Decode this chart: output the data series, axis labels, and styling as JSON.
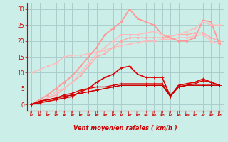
{
  "background_color": "#cceee8",
  "grid_color": "#aacccc",
  "x_ticks": [
    0,
    1,
    2,
    3,
    4,
    5,
    6,
    7,
    8,
    9,
    10,
    11,
    12,
    13,
    14,
    15,
    16,
    17,
    18,
    19,
    20,
    21,
    22,
    23
  ],
  "xlabel": "Vent moyen/en rafales ( km/h )",
  "ylim": [
    -2,
    32
  ],
  "yticks": [
    0,
    5,
    10,
    15,
    20,
    25,
    30
  ],
  "series": [
    {
      "x": [
        0,
        1,
        2,
        3,
        4,
        5,
        6,
        7,
        8,
        9,
        10,
        11,
        12,
        13,
        14,
        15,
        16,
        17,
        18,
        19,
        20,
        21,
        22,
        23
      ],
      "y": [
        10,
        11,
        12,
        13,
        15,
        15.5,
        15.5,
        16,
        16.5,
        17,
        18,
        18.5,
        19,
        19.5,
        20,
        20,
        20.5,
        20.5,
        21,
        21,
        21.5,
        22,
        20,
        19
      ],
      "color": "#ffbbbb",
      "lw": 1.0,
      "marker": "s",
      "ms": 1.5
    },
    {
      "x": [
        0,
        1,
        2,
        3,
        4,
        5,
        6,
        7,
        8,
        9,
        10,
        11,
        12,
        13,
        14,
        15,
        16,
        17,
        18,
        19,
        20,
        21,
        22,
        23
      ],
      "y": [
        0,
        1,
        2,
        3,
        5,
        7,
        9,
        12,
        15,
        16,
        18,
        20,
        21,
        21,
        21,
        21,
        21,
        21.5,
        22,
        22,
        22.5,
        22.5,
        21,
        20
      ],
      "color": "#ffaaaa",
      "lw": 1.0,
      "marker": "s",
      "ms": 1.5
    },
    {
      "x": [
        0,
        1,
        2,
        3,
        4,
        5,
        6,
        7,
        8,
        9,
        10,
        11,
        12,
        13,
        14,
        15,
        16,
        17,
        18,
        19,
        20,
        21,
        22,
        23
      ],
      "y": [
        0,
        1.5,
        3,
        5,
        7,
        9,
        12,
        15,
        18,
        22,
        24,
        26,
        30,
        27,
        26,
        25,
        22,
        21,
        20,
        20,
        21,
        26.5,
        26,
        19
      ],
      "color": "#ff9999",
      "lw": 1.3,
      "marker": "s",
      "ms": 2.0
    },
    {
      "x": [
        0,
        1,
        2,
        3,
        4,
        5,
        6,
        7,
        8,
        9,
        10,
        11,
        12,
        13,
        14,
        15,
        16,
        17,
        18,
        19,
        20,
        21,
        22,
        23
      ],
      "y": [
        0,
        1,
        2,
        4,
        5,
        7,
        10,
        13,
        16,
        18,
        20,
        22,
        22,
        22,
        22.5,
        23,
        22,
        21.5,
        22,
        23,
        24,
        26,
        25,
        25
      ],
      "color": "#ffbbbb",
      "lw": 1.0,
      "marker": "s",
      "ms": 1.5
    },
    {
      "x": [
        0,
        1,
        2,
        3,
        4,
        5,
        6,
        7,
        8,
        9,
        10,
        11,
        12,
        13,
        14,
        15,
        16,
        17,
        18,
        19,
        20,
        21,
        22,
        23
      ],
      "y": [
        0,
        0.5,
        1,
        1.5,
        2,
        2.5,
        4,
        5,
        7,
        8.5,
        9.5,
        11.5,
        12,
        9.5,
        8.5,
        8.5,
        8.5,
        2.5,
        6,
        6.5,
        7,
        8,
        7,
        6
      ],
      "color": "#dd0000",
      "lw": 1.2,
      "marker": "+",
      "ms": 3
    },
    {
      "x": [
        0,
        1,
        2,
        3,
        4,
        5,
        6,
        7,
        8,
        9,
        10,
        11,
        12,
        13,
        14,
        15,
        16,
        17,
        18,
        19,
        20,
        21,
        22,
        23
      ],
      "y": [
        0,
        1,
        1.5,
        2,
        3,
        3.5,
        4.5,
        5,
        5.5,
        5.5,
        6,
        6.5,
        6.5,
        6.5,
        6.5,
        6.5,
        6.5,
        2.5,
        5.5,
        6,
        6.5,
        7.5,
        7,
        6
      ],
      "color": "#dd0000",
      "lw": 1.0,
      "marker": "+",
      "ms": 3
    },
    {
      "x": [
        0,
        1,
        2,
        3,
        4,
        5,
        6,
        7,
        8,
        9,
        10,
        11,
        12,
        13,
        14,
        15,
        16,
        17,
        18,
        19,
        20,
        21,
        22,
        23
      ],
      "y": [
        0,
        1,
        1.5,
        2,
        2.5,
        3,
        3.5,
        4,
        4.5,
        5,
        5.5,
        6,
        6,
        6,
        6,
        6,
        6,
        3,
        5.5,
        6,
        6,
        6,
        6,
        6
      ],
      "color": "#cc0000",
      "lw": 0.9,
      "marker": "+",
      "ms": 3
    },
    {
      "x": [
        0,
        1,
        2,
        3,
        4,
        5,
        6,
        7,
        8,
        9,
        10,
        11,
        12,
        13,
        14,
        15,
        16,
        17,
        18,
        19,
        20,
        21,
        22,
        23
      ],
      "y": [
        0,
        1,
        1.5,
        2,
        2.5,
        3,
        3.5,
        4,
        4.5,
        5,
        5.5,
        6,
        6,
        6,
        6,
        6,
        6,
        2.5,
        5.5,
        6,
        6,
        6,
        6,
        6
      ],
      "color": "#cc0000",
      "lw": 0.9,
      "marker": "+",
      "ms": 3
    }
  ],
  "arrow_color": "#cc0000",
  "title_color": "#cc0000",
  "axis_color": "#cc0000",
  "tick_color": "#cc0000"
}
